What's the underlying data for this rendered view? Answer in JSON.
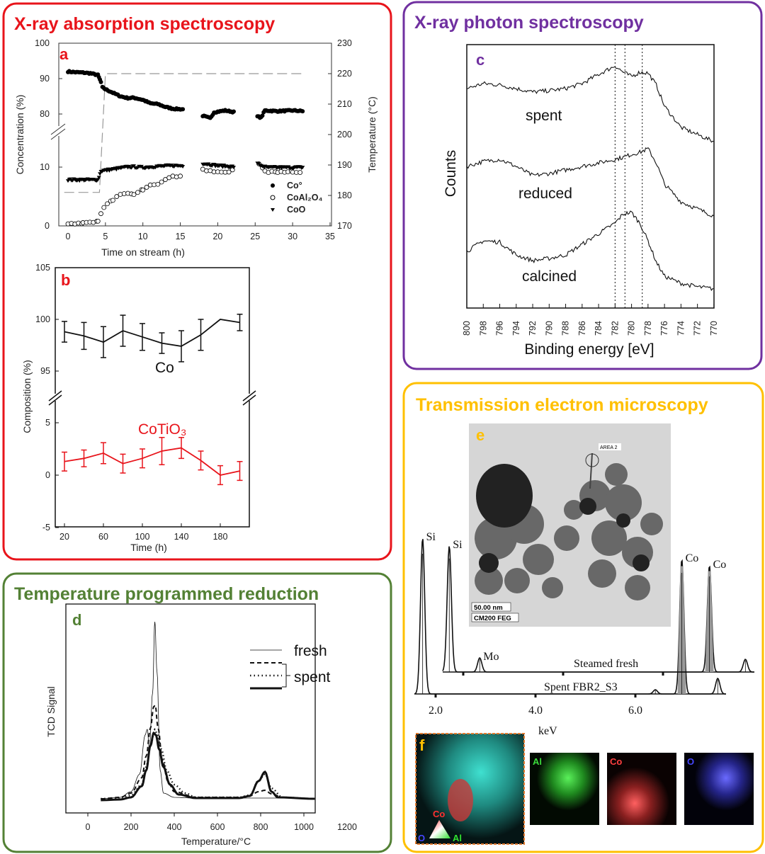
{
  "panels": {
    "xas": {
      "title": "X-ray absorption spectroscopy",
      "color": "#e8141b"
    },
    "xps": {
      "title": "X-ray photon spectroscopy",
      "color": "#7030a0"
    },
    "tpr": {
      "title": "Temperature programmed reduction",
      "color": "#538135"
    },
    "tem": {
      "title": "Transmission electron microscopy",
      "color": "#ffc000"
    }
  },
  "chart_data": [
    {
      "panel_label": "a",
      "type": "scatter",
      "xlabel": "Time on stream (h)",
      "ylabel": "Concentration (%)",
      "y2label": "Temperature (°C)",
      "xlim": [
        0,
        35
      ],
      "xticks": [
        0,
        5,
        10,
        15,
        20,
        25,
        30,
        35
      ],
      "yticks": [
        0,
        10,
        80,
        90,
        100
      ],
      "y_break": [
        12,
        76
      ],
      "y2lim": [
        170,
        230
      ],
      "y2ticks": [
        170,
        180,
        190,
        200,
        210,
        220,
        230
      ],
      "legend_position": "bottom-right",
      "series": [
        {
          "name": "Co°",
          "marker": "filled-circle",
          "points": [
            [
              0,
              92
            ],
            [
              1,
              91.8
            ],
            [
              2,
              91.7
            ],
            [
              3,
              91.5
            ],
            [
              4,
              91
            ],
            [
              4.4,
              89
            ],
            [
              4.6,
              87.5
            ],
            [
              5,
              87
            ],
            [
              6,
              86
            ],
            [
              7,
              85
            ],
            [
              8,
              84.5
            ],
            [
              8.8,
              84.6
            ],
            [
              10,
              84
            ],
            [
              11,
              83
            ],
            [
              12,
              82.8
            ],
            [
              13,
              82
            ],
            [
              14,
              81.5
            ],
            [
              15.5,
              81.3
            ],
            [
              null,
              null
            ],
            [
              18,
              79.5
            ],
            [
              19,
              78.8
            ],
            [
              19.5,
              80.5
            ],
            [
              21,
              81
            ],
            [
              22.3,
              80.5
            ],
            [
              null,
              null
            ],
            [
              25.3,
              79.3
            ],
            [
              25.8,
              79
            ],
            [
              26.3,
              81
            ],
            [
              28,
              80.8
            ],
            [
              30,
              81
            ],
            [
              31.5,
              80.8
            ]
          ]
        },
        {
          "name": "CoAl₂O₄",
          "marker": "open-circle",
          "points": [
            [
              0,
              0.3
            ],
            [
              2,
              0.5
            ],
            [
              4,
              0.8
            ],
            [
              4.4,
              2
            ],
            [
              4.8,
              3.2
            ],
            [
              6,
              4.5
            ],
            [
              7,
              5.2
            ],
            [
              8,
              5.7
            ],
            [
              8.8,
              5.5
            ],
            [
              10,
              6.2
            ],
            [
              11,
              7
            ],
            [
              12,
              7.2
            ],
            [
              13,
              8
            ],
            [
              14,
              8.3
            ],
            [
              15.5,
              8.6
            ],
            [
              null,
              null
            ],
            [
              18,
              9.5
            ],
            [
              19,
              9.3
            ],
            [
              20,
              9.2
            ],
            [
              21,
              9
            ],
            [
              22.3,
              9.5
            ],
            [
              null,
              null
            ],
            [
              25.5,
              10.7
            ],
            [
              26.3,
              9.2
            ],
            [
              28,
              9.1
            ],
            [
              30,
              9.2
            ],
            [
              31.5,
              9.3
            ]
          ]
        },
        {
          "name": "CoO",
          "marker": "filled-triangle-down",
          "points": [
            [
              0,
              7.8
            ],
            [
              2,
              7.8
            ],
            [
              4,
              7.8
            ],
            [
              4.4,
              9.3
            ],
            [
              6,
              9.6
            ],
            [
              8,
              10
            ],
            [
              8.8,
              10
            ],
            [
              10,
              9.9
            ],
            [
              12,
              10.1
            ],
            [
              14,
              10.2
            ],
            [
              15.5,
              10.2
            ],
            [
              null,
              null
            ],
            [
              18,
              10.6
            ],
            [
              20,
              10.2
            ],
            [
              22.3,
              10
            ],
            [
              null,
              null
            ],
            [
              25.3,
              10.5
            ],
            [
              26.5,
              9.9
            ],
            [
              29,
              9.9
            ],
            [
              31.5,
              9.9
            ]
          ]
        }
      ],
      "temperature_line": {
        "style": "dashed",
        "axis": "right",
        "points": [
          [
            -0.5,
            181
          ],
          [
            4.2,
            181
          ],
          [
            5,
            220
          ],
          [
            31.5,
            220
          ]
        ]
      }
    },
    {
      "panel_label": "b",
      "type": "line",
      "xlabel": "Time (h)",
      "ylabel": "Composition (%)",
      "xticks": [
        20,
        60,
        100,
        140,
        180
      ],
      "yticks": [
        -5,
        0,
        5,
        95,
        100,
        105
      ],
      "y_break": [
        6,
        94
      ],
      "series": [
        {
          "name": "Co",
          "color": "#111111",
          "x": [
            20,
            40,
            60,
            80,
            100,
            120,
            140,
            160,
            180,
            200
          ],
          "values": [
            98.8,
            98.4,
            97.8,
            98.9,
            98.3,
            97.7,
            97.4,
            98.5,
            100.0,
            99.7
          ],
          "error": [
            1.0,
            1.3,
            1.5,
            1.5,
            1.3,
            1.0,
            1.5,
            1.5,
            0,
            0.8
          ]
        },
        {
          "name": "CoTiO₃",
          "color": "#e8141b",
          "x": [
            20,
            40,
            60,
            80,
            100,
            120,
            140,
            160,
            180,
            200
          ],
          "values": [
            1.3,
            1.6,
            2.1,
            1.1,
            1.6,
            2.3,
            2.6,
            1.4,
            0.0,
            0.4
          ],
          "error": [
            0.9,
            0.8,
            1.0,
            0.9,
            0.9,
            1.3,
            1.0,
            0.9,
            0.9,
            0.9
          ]
        }
      ]
    },
    {
      "panel_label": "c",
      "type": "line",
      "xlabel": "Binding energy [eV]",
      "ylabel": "Counts",
      "xlim": [
        800,
        770
      ],
      "xticks": [
        800,
        798,
        796,
        794,
        792,
        790,
        788,
        786,
        784,
        782,
        780,
        778,
        776,
        774,
        772,
        770
      ],
      "reference_lines_eV": [
        782.0,
        780.8,
        778.7
      ],
      "series": [
        {
          "name": "spent",
          "x": [
            800,
            798,
            796,
            794,
            792,
            790,
            788,
            786,
            784,
            782,
            781,
            780,
            779,
            778,
            777,
            776,
            774,
            772,
            770
          ],
          "values": [
            315,
            322,
            320,
            315,
            310,
            312,
            315,
            322,
            335,
            347,
            338,
            332,
            338,
            337,
            320,
            290,
            260,
            250,
            240
          ]
        },
        {
          "name": "reduced",
          "x": [
            800,
            798,
            796,
            794,
            792,
            790,
            788,
            786,
            784,
            782,
            781,
            780,
            779,
            778,
            777,
            776,
            774,
            772,
            770
          ],
          "values": [
            205,
            212,
            215,
            205,
            192,
            195,
            200,
            205,
            210,
            215,
            218,
            222,
            225,
            230,
            210,
            180,
            155,
            145,
            135
          ]
        },
        {
          "name": "calcined",
          "x": [
            800,
            798,
            796,
            794,
            792,
            790,
            788,
            786,
            784,
            782,
            781,
            780,
            779,
            778,
            777,
            776,
            774,
            772,
            770
          ],
          "values": [
            85,
            100,
            98,
            80,
            72,
            75,
            80,
            95,
            110,
            125,
            138,
            140,
            125,
            100,
            70,
            50,
            40,
            35,
            32
          ]
        }
      ]
    },
    {
      "panel_label": "d",
      "type": "line",
      "xlabel": "Temperature/°C",
      "ylabel": "TCD Signal",
      "xlim": [
        -100,
        1200
      ],
      "xticks": [
        0,
        200,
        400,
        600,
        800,
        1000,
        1200
      ],
      "legend": [
        "fresh",
        "spent"
      ],
      "legend_position": "top-right",
      "series": [
        {
          "name": "fresh",
          "style": "thin",
          "x": [
            60,
            150,
            200,
            240,
            265,
            275,
            285,
            300,
            310,
            320,
            335,
            350,
            400,
            500,
            700,
            800,
            900,
            1050
          ],
          "values": [
            20,
            22,
            30,
            55,
            110,
            118,
            90,
            170,
            270,
            200,
            60,
            28,
            22,
            21,
            21,
            21,
            21,
            20
          ]
        },
        {
          "name": "spent",
          "style": "dashed",
          "x": [
            60,
            150,
            200,
            250,
            270,
            290,
            305,
            312,
            325,
            345,
            370,
            400,
            500,
            700,
            750,
            790,
            820,
            850,
            900,
            1050
          ],
          "values": [
            20,
            22,
            28,
            50,
            80,
            120,
            150,
            152,
            120,
            75,
            45,
            30,
            22,
            22,
            24,
            30,
            32,
            27,
            22,
            20
          ]
        },
        {
          "name": "spent",
          "style": "dotted",
          "x": [
            60,
            150,
            200,
            250,
            270,
            290,
            310,
            320,
            340,
            365,
            400,
            450,
            500,
            700,
            750,
            790,
            820,
            850,
            900,
            1050
          ],
          "values": [
            20,
            21,
            25,
            40,
            65,
            95,
            118,
            112,
            90,
            60,
            40,
            28,
            22,
            22,
            25,
            45,
            55,
            35,
            22,
            20
          ]
        },
        {
          "name": "spent",
          "style": "thick",
          "x": [
            60,
            150,
            200,
            250,
            270,
            290,
            305,
            315,
            330,
            350,
            380,
            420,
            500,
            700,
            750,
            790,
            820,
            850,
            880,
            1050
          ],
          "values": [
            18,
            19,
            22,
            38,
            60,
            95,
            113,
            110,
            90,
            65,
            40,
            26,
            21,
            21,
            24,
            45,
            58,
            30,
            22,
            20
          ]
        }
      ]
    },
    {
      "panel_label": "e",
      "type": "line",
      "xlabel": "keV",
      "xticks": [
        2.0,
        4.0,
        6.0
      ],
      "series": [
        {
          "name": "Spent FBR2_S3",
          "peaks": [
            {
              "label": "Si",
              "keV": 1.74,
              "height": 220
            },
            {
              "label": "",
              "keV": 6.4,
              "height": 6
            },
            {
              "label": "Co",
              "keV": 6.93,
              "height": 190,
              "shaded": true
            },
            {
              "label": "",
              "keV": 7.65,
              "height": 22
            }
          ]
        },
        {
          "name": "Steamed fresh",
          "peaks": [
            {
              "label": "Si",
              "keV": 1.72,
              "height": 178
            },
            {
              "label": "Mo",
              "keV": 2.33,
              "height": 20
            },
            {
              "label": "Co",
              "keV": 6.93,
              "height": 150,
              "shaded": true
            },
            {
              "label": "",
              "keV": 7.65,
              "height": 18
            }
          ]
        }
      ]
    }
  ],
  "images": {
    "tem": {
      "scale_bar": "50.00 nm",
      "instrument": "CM200 FEG",
      "area_label": "AREA 2"
    },
    "maps": {
      "panel_label": "f",
      "triangle": {
        "top": "Co",
        "left": "O",
        "right": "Al"
      },
      "channels": [
        {
          "label": "Al",
          "color": "#3cdc3c"
        },
        {
          "label": "Co",
          "color": "#ff4040"
        },
        {
          "label": "O",
          "color": "#4646ff"
        }
      ]
    }
  }
}
